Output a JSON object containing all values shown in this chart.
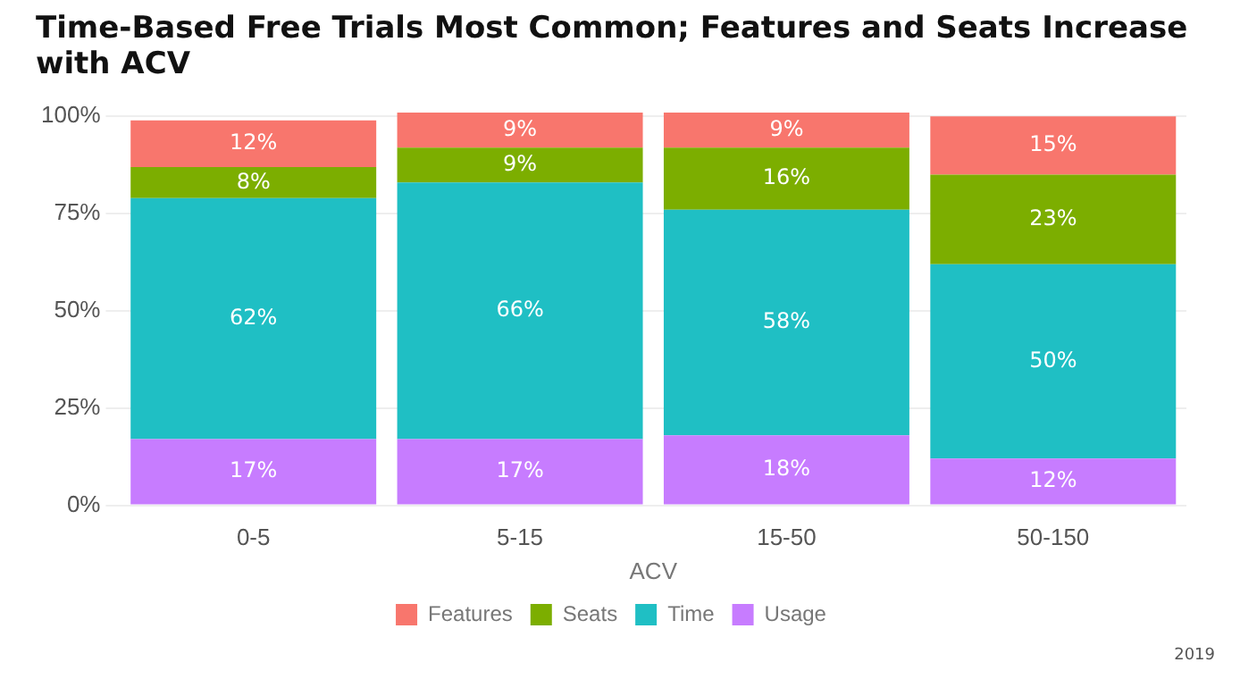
{
  "chart_data": {
    "type": "bar",
    "title": "Time-Based Free Trials Most Common; Features and Seats Increase with ACV",
    "xlabel": "ACV",
    "categories": [
      "0-5",
      "5-15",
      "15-50",
      "50-150"
    ],
    "stacked": true,
    "ylim": [
      0,
      102
    ],
    "yticks": [
      {
        "value": 0,
        "label": "0%"
      },
      {
        "value": 25,
        "label": "25%"
      },
      {
        "value": 50,
        "label": "50%"
      },
      {
        "value": 75,
        "label": "75%"
      },
      {
        "value": 100,
        "label": "100%"
      }
    ],
    "grid": "y",
    "legend": "bottom",
    "annotations": [
      "2019"
    ],
    "series": [
      {
        "name": "Usage",
        "color": "#c77cff",
        "values": [
          17,
          17,
          18,
          12
        ],
        "value_labels": [
          "17%",
          "17%",
          "18%",
          "12%"
        ]
      },
      {
        "name": "Time",
        "color": "#1fbfc4",
        "values": [
          62,
          66,
          58,
          50
        ],
        "value_labels": [
          "62%",
          "66%",
          "58%",
          "50%"
        ]
      },
      {
        "name": "Seats",
        "color": "#7cae00",
        "values": [
          8,
          9,
          16,
          23
        ],
        "value_labels": [
          "8%",
          "9%",
          "16%",
          "23%"
        ]
      },
      {
        "name": "Features",
        "color": "#f8766d",
        "values": [
          12,
          9,
          9,
          15
        ],
        "value_labels": [
          "12%",
          "9%",
          "9%",
          "15%"
        ]
      }
    ]
  }
}
